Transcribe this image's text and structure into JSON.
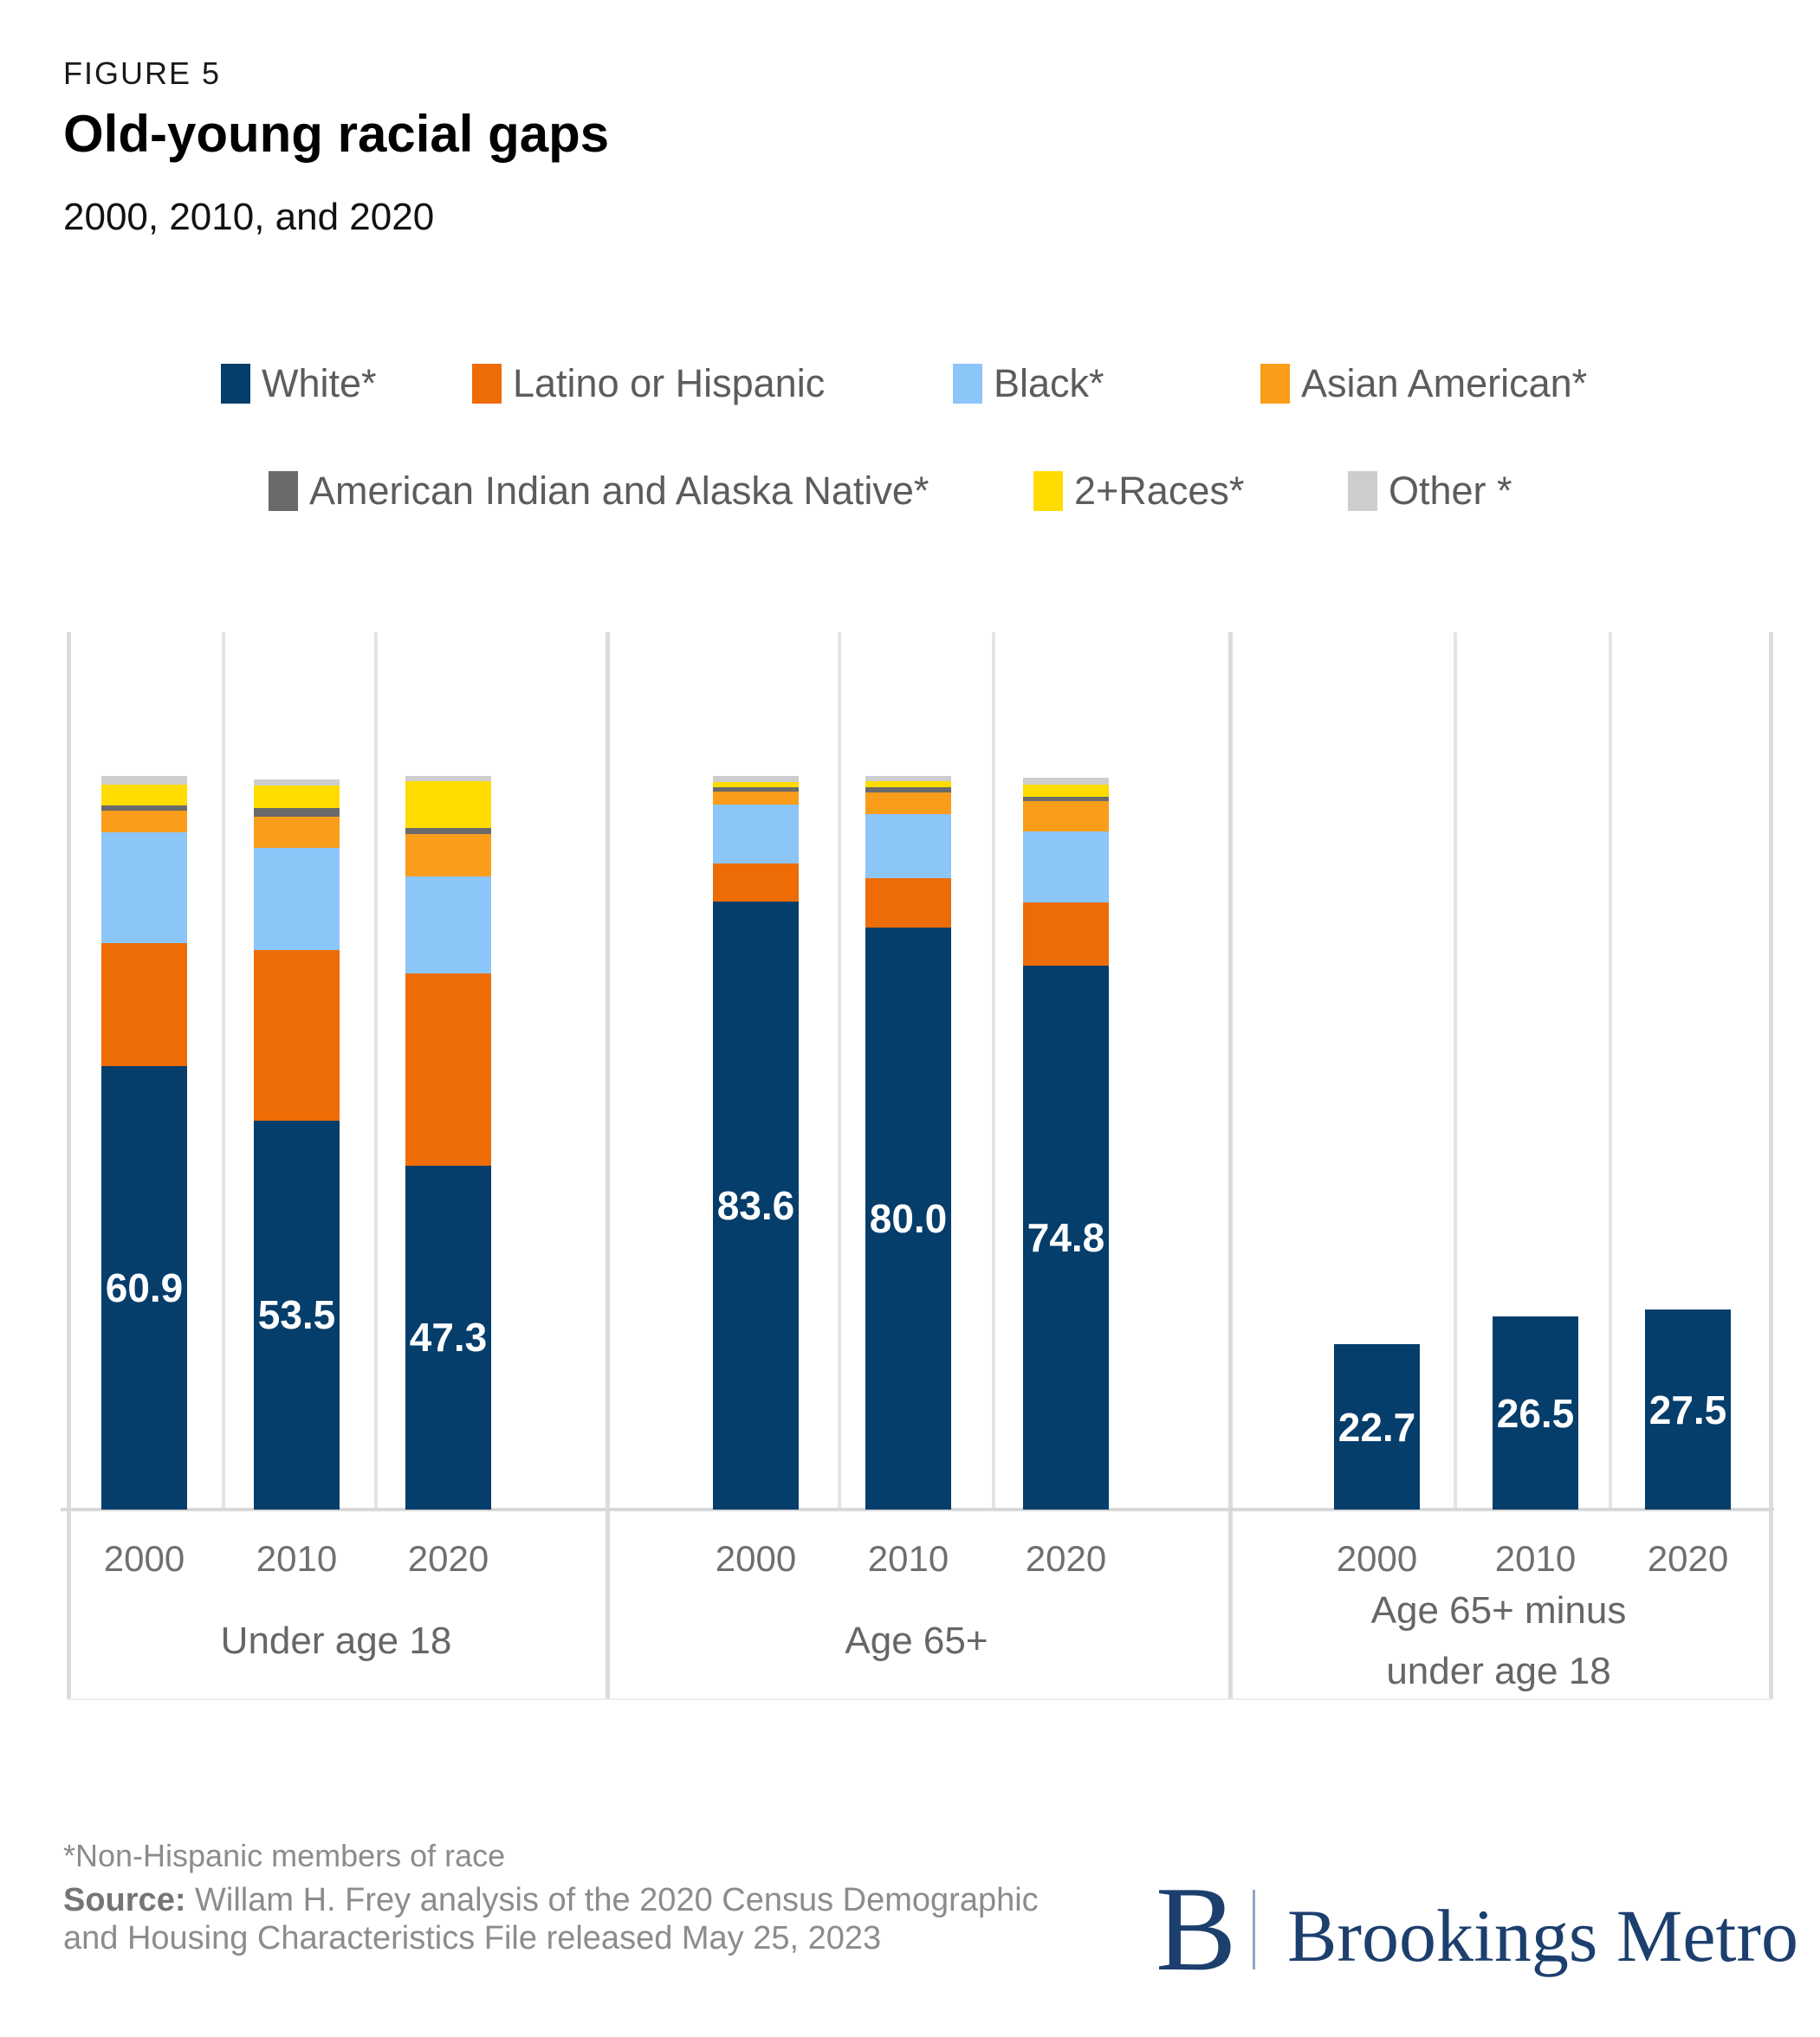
{
  "header": {
    "figure_label": "FIGURE 5",
    "title": "Old-young racial gaps",
    "subtitle": "2000, 2010, and 2020"
  },
  "colors": {
    "white": "#053d6b",
    "latino": "#ee6c05",
    "black": "#8cc5f8",
    "asian": "#f99d1b",
    "aian": "#6a6a6a",
    "two_plus": "#ffdb00",
    "other": "#cdcdcd",
    "grid": "#e4e4e4",
    "separator": "#dcdcdc",
    "baseline": "#d8d8d8",
    "axis_text": "#6f6f6f",
    "value_label_text": "#ffffff"
  },
  "legend": {
    "rows": [
      {
        "items": [
          {
            "key": "white",
            "label": "White*"
          },
          {
            "key": "latino",
            "label": "Latino or Hispanic"
          },
          {
            "key": "black",
            "label": "Black*"
          },
          {
            "key": "asian",
            "label": "Asian American*"
          }
        ]
      },
      {
        "items": [
          {
            "key": "aian",
            "label": "American Indian and Alaska Native*"
          },
          {
            "key": "two_plus",
            "label": "2+Races*"
          },
          {
            "key": "other",
            "label": "Other *"
          }
        ]
      }
    ]
  },
  "chart_data": {
    "type": "bar",
    "stacked": true,
    "value_unit": "percent share of age group",
    "value_axis_visible": false,
    "grid": "vertical-only",
    "legend_position": "top",
    "segment_order": [
      "white",
      "latino",
      "black",
      "asian",
      "aian",
      "two_plus",
      "other"
    ],
    "segment_labels": {
      "white": "White*",
      "latino": "Latino or Hispanic",
      "black": "Black*",
      "asian": "Asian American*",
      "aian": "American Indian and Alaska Native*",
      "two_plus": "2+Races*",
      "other": "Other *"
    },
    "groups": [
      {
        "label_lines": [
          "Under age 18"
        ],
        "bars": [
          {
            "year": "2000",
            "label": "60.9",
            "values": {
              "white": 60.9,
              "latino": 17.0,
              "black": 15.2,
              "asian": 3.0,
              "aian": 0.7,
              "two_plus": 2.9,
              "other": 1.1
            }
          },
          {
            "year": "2010",
            "label": "53.5",
            "values": {
              "white": 53.5,
              "latino": 23.4,
              "black": 14.1,
              "asian": 4.2,
              "aian": 1.2,
              "two_plus": 3.1,
              "other": 0.9
            }
          },
          {
            "year": "2020",
            "label": "47.3",
            "values": {
              "white": 47.3,
              "latino": 26.4,
              "black": 13.3,
              "asian": 5.9,
              "aian": 0.8,
              "two_plus": 6.4,
              "other": 0.7
            }
          }
        ]
      },
      {
        "label_lines": [
          "Age 65+"
        ],
        "bars": [
          {
            "year": "2000",
            "label": "83.6",
            "values": {
              "white": 83.6,
              "latino": 5.2,
              "black": 8.1,
              "asian": 1.8,
              "aian": 0.6,
              "two_plus": 0.7,
              "other": 0.8
            }
          },
          {
            "year": "2010",
            "label": "80.0",
            "values": {
              "white": 80.0,
              "latino": 6.8,
              "black": 8.8,
              "asian": 3.0,
              "aian": 0.7,
              "two_plus": 0.8,
              "other": 0.7
            }
          },
          {
            "year": "2020",
            "label": "74.8",
            "values": {
              "white": 74.8,
              "latino": 8.7,
              "black": 9.7,
              "asian": 4.2,
              "aian": 0.6,
              "two_plus": 1.7,
              "other": 0.9
            }
          }
        ]
      },
      {
        "label_lines": [
          "Age 65+ minus",
          "under age 18"
        ],
        "bars": [
          {
            "year": "2000",
            "label": "22.7",
            "values": {
              "white": 22.7
            }
          },
          {
            "year": "2010",
            "label": "26.5",
            "values": {
              "white": 26.5
            }
          },
          {
            "year": "2020",
            "label": "27.5",
            "values": {
              "white": 27.5
            }
          }
        ]
      }
    ]
  },
  "footer": {
    "footnote": "*Non-Hispanic members of race",
    "source_label": "Source:",
    "source_text": " Willam H. Frey analysis of the 2020 Census Demographic and Housing Characteristics File released May 25, 2023"
  },
  "logo": {
    "monogram": "B",
    "wordmark": "Brookings Metro"
  }
}
